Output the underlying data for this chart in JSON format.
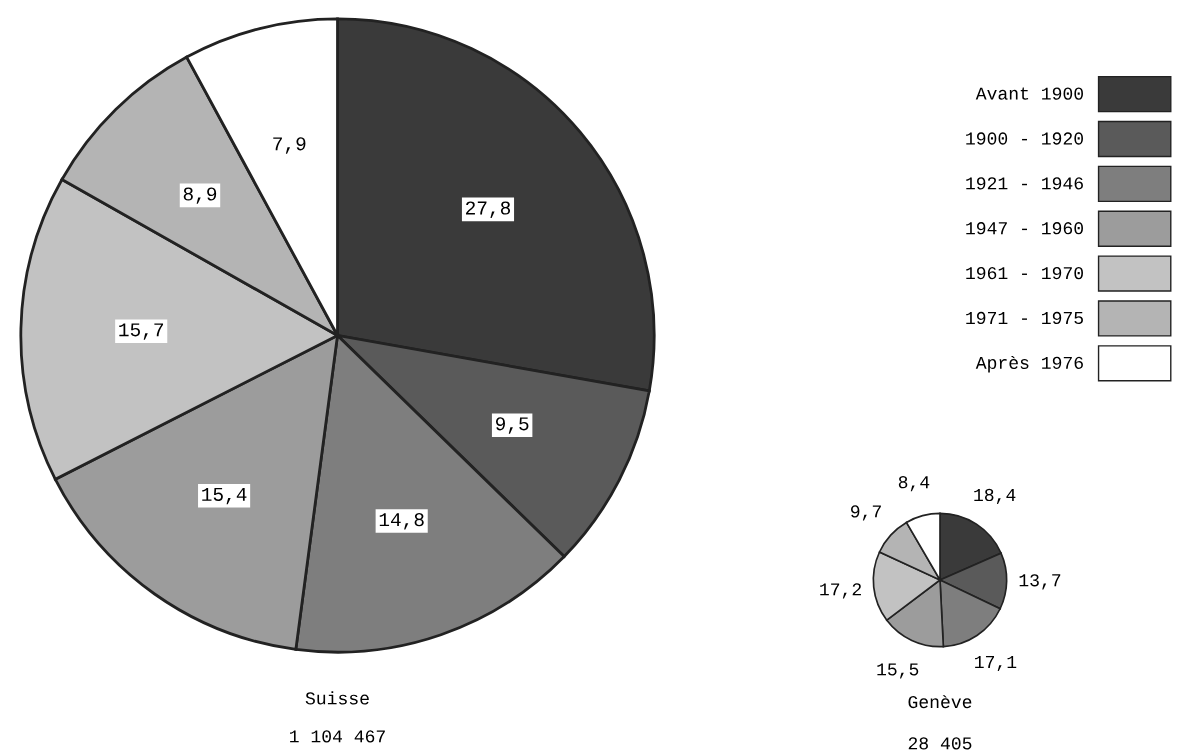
{
  "chart_data": [
    {
      "type": "pie",
      "title": "Suisse",
      "subtitle": "1 104 467",
      "categories": [
        "Avant 1900",
        "1900 - 1920",
        "1921 - 1946",
        "1947 - 1960",
        "1961 - 1970",
        "1971 - 1975",
        "Après 1976"
      ],
      "values": [
        27.8,
        9.5,
        14.8,
        15.4,
        15.7,
        8.9,
        7.9
      ],
      "value_labels": [
        "27,8",
        "9,5",
        "14,8",
        "15,4",
        "15,7",
        "8,9",
        "7,9"
      ],
      "colors": [
        "#3a3a3a",
        "#5a5a5a",
        "#7e7e7e",
        "#9c9c9c",
        "#c2c2c2",
        "#b4b4b4",
        "#ffffff"
      ],
      "legend": "right"
    },
    {
      "type": "pie",
      "title": "Genève",
      "subtitle": "28 405",
      "categories": [
        null,
        null,
        null,
        null,
        null,
        null,
        null
      ],
      "values": [
        18.4,
        13.7,
        17.1,
        15.5,
        17.2,
        9.7,
        8.4
      ],
      "value_labels": [
        "18,4",
        "13,7",
        "17,1",
        "15,5",
        "17,2",
        "9,7",
        "8,4"
      ],
      "colors": [
        "#3a3a3a",
        "#5a5a5a",
        "#7e7e7e",
        "#9c9c9c",
        "#c2c2c2",
        "#b4b4b4",
        "#ffffff"
      ]
    }
  ]
}
